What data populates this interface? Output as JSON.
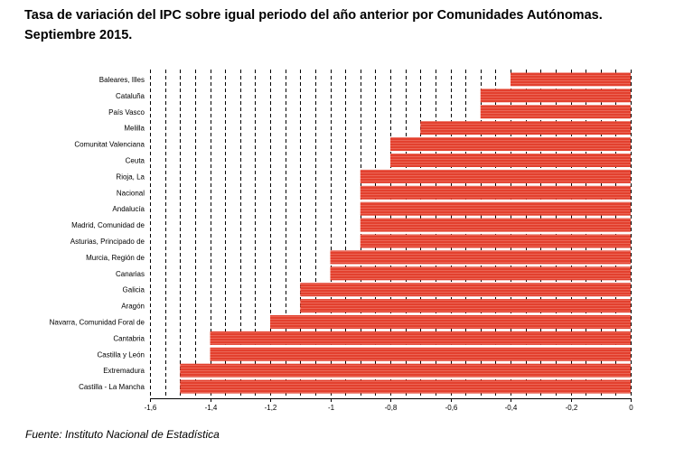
{
  "title_line1": "Tasa de variación del IPC sobre igual periodo del año anterior por Comunidades Autónomas.",
  "title_line2": "Septiembre 2015.",
  "source": "Fuente: Instituto Nacional de Estadística",
  "chart_data": {
    "type": "bar",
    "orientation": "horizontal",
    "categories": [
      "Baleares, Illes",
      "Cataluña",
      "País Vasco",
      "Melilla",
      "Comunitat Valenciana",
      "Ceuta",
      "Rioja, La",
      "Nacional",
      "Andalucía",
      "Madrid, Comunidad de",
      "Asturias, Principado de",
      "Murcia, Región de",
      "Canarias",
      "Galicia",
      "Aragón",
      "Navarra, Comunidad Foral de",
      "Cantabria",
      "Castilla y León",
      "Extremadura",
      "Castilla - La Mancha"
    ],
    "values": [
      -0.4,
      -0.5,
      -0.5,
      -0.7,
      -0.8,
      -0.8,
      -0.9,
      -0.9,
      -0.9,
      -0.9,
      -0.9,
      -1.0,
      -1.0,
      -1.1,
      -1.1,
      -1.2,
      -1.4,
      -1.4,
      -1.5,
      -1.5
    ],
    "xlim": [
      -1.6,
      0
    ],
    "xticks": [
      -1.6,
      -1.4,
      -1.2,
      -1,
      -0.8,
      -0.6,
      -0.4,
      -0.2,
      0
    ],
    "xtick_labels": [
      "-1,6",
      "-1,4",
      "-1,2",
      "-1",
      "-0,8",
      "-0,6",
      "-0,4",
      "-0,2",
      "0"
    ],
    "grid_step": 0.05,
    "grid": true,
    "bar_color": "#e3402e",
    "bar_stripe_color": "#f08070"
  }
}
